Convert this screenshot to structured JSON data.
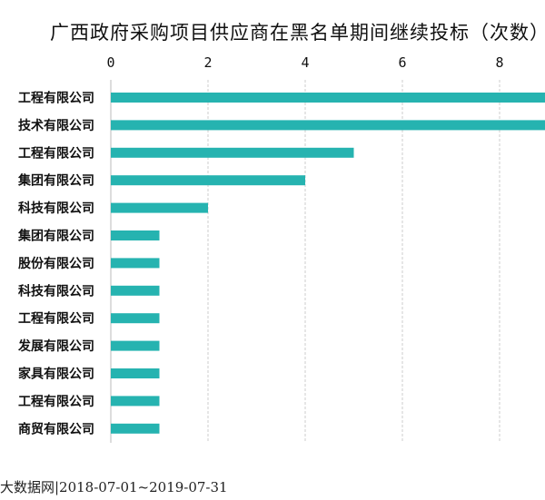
{
  "chart_data": {
    "type": "bar",
    "orientation": "horizontal",
    "title": "广西政府采购项目供应商在黑名单期间继续投标（次数）",
    "categories": [
      "工程有限公司",
      "技术有限公司",
      "工程有限公司",
      "集团有限公司",
      "科技有限公司",
      "集团有限公司",
      "股份有限公司",
      "科技有限公司",
      "工程有限公司",
      "发展有限公司",
      "家具有限公司",
      "工程有限公司",
      "商贸有限公司"
    ],
    "values": [
      9,
      9,
      5,
      4,
      2,
      1,
      1,
      1,
      1,
      1,
      1,
      1,
      1
    ],
    "xlim": [
      0,
      9
    ],
    "xticks": [
      0,
      2,
      4,
      6,
      8
    ],
    "grid": true,
    "bar_color": "#26b3b0",
    "grid_color": "#cccccc"
  },
  "footer": {
    "source_text": "大数据网|2018-07-01~2019-07-31"
  }
}
